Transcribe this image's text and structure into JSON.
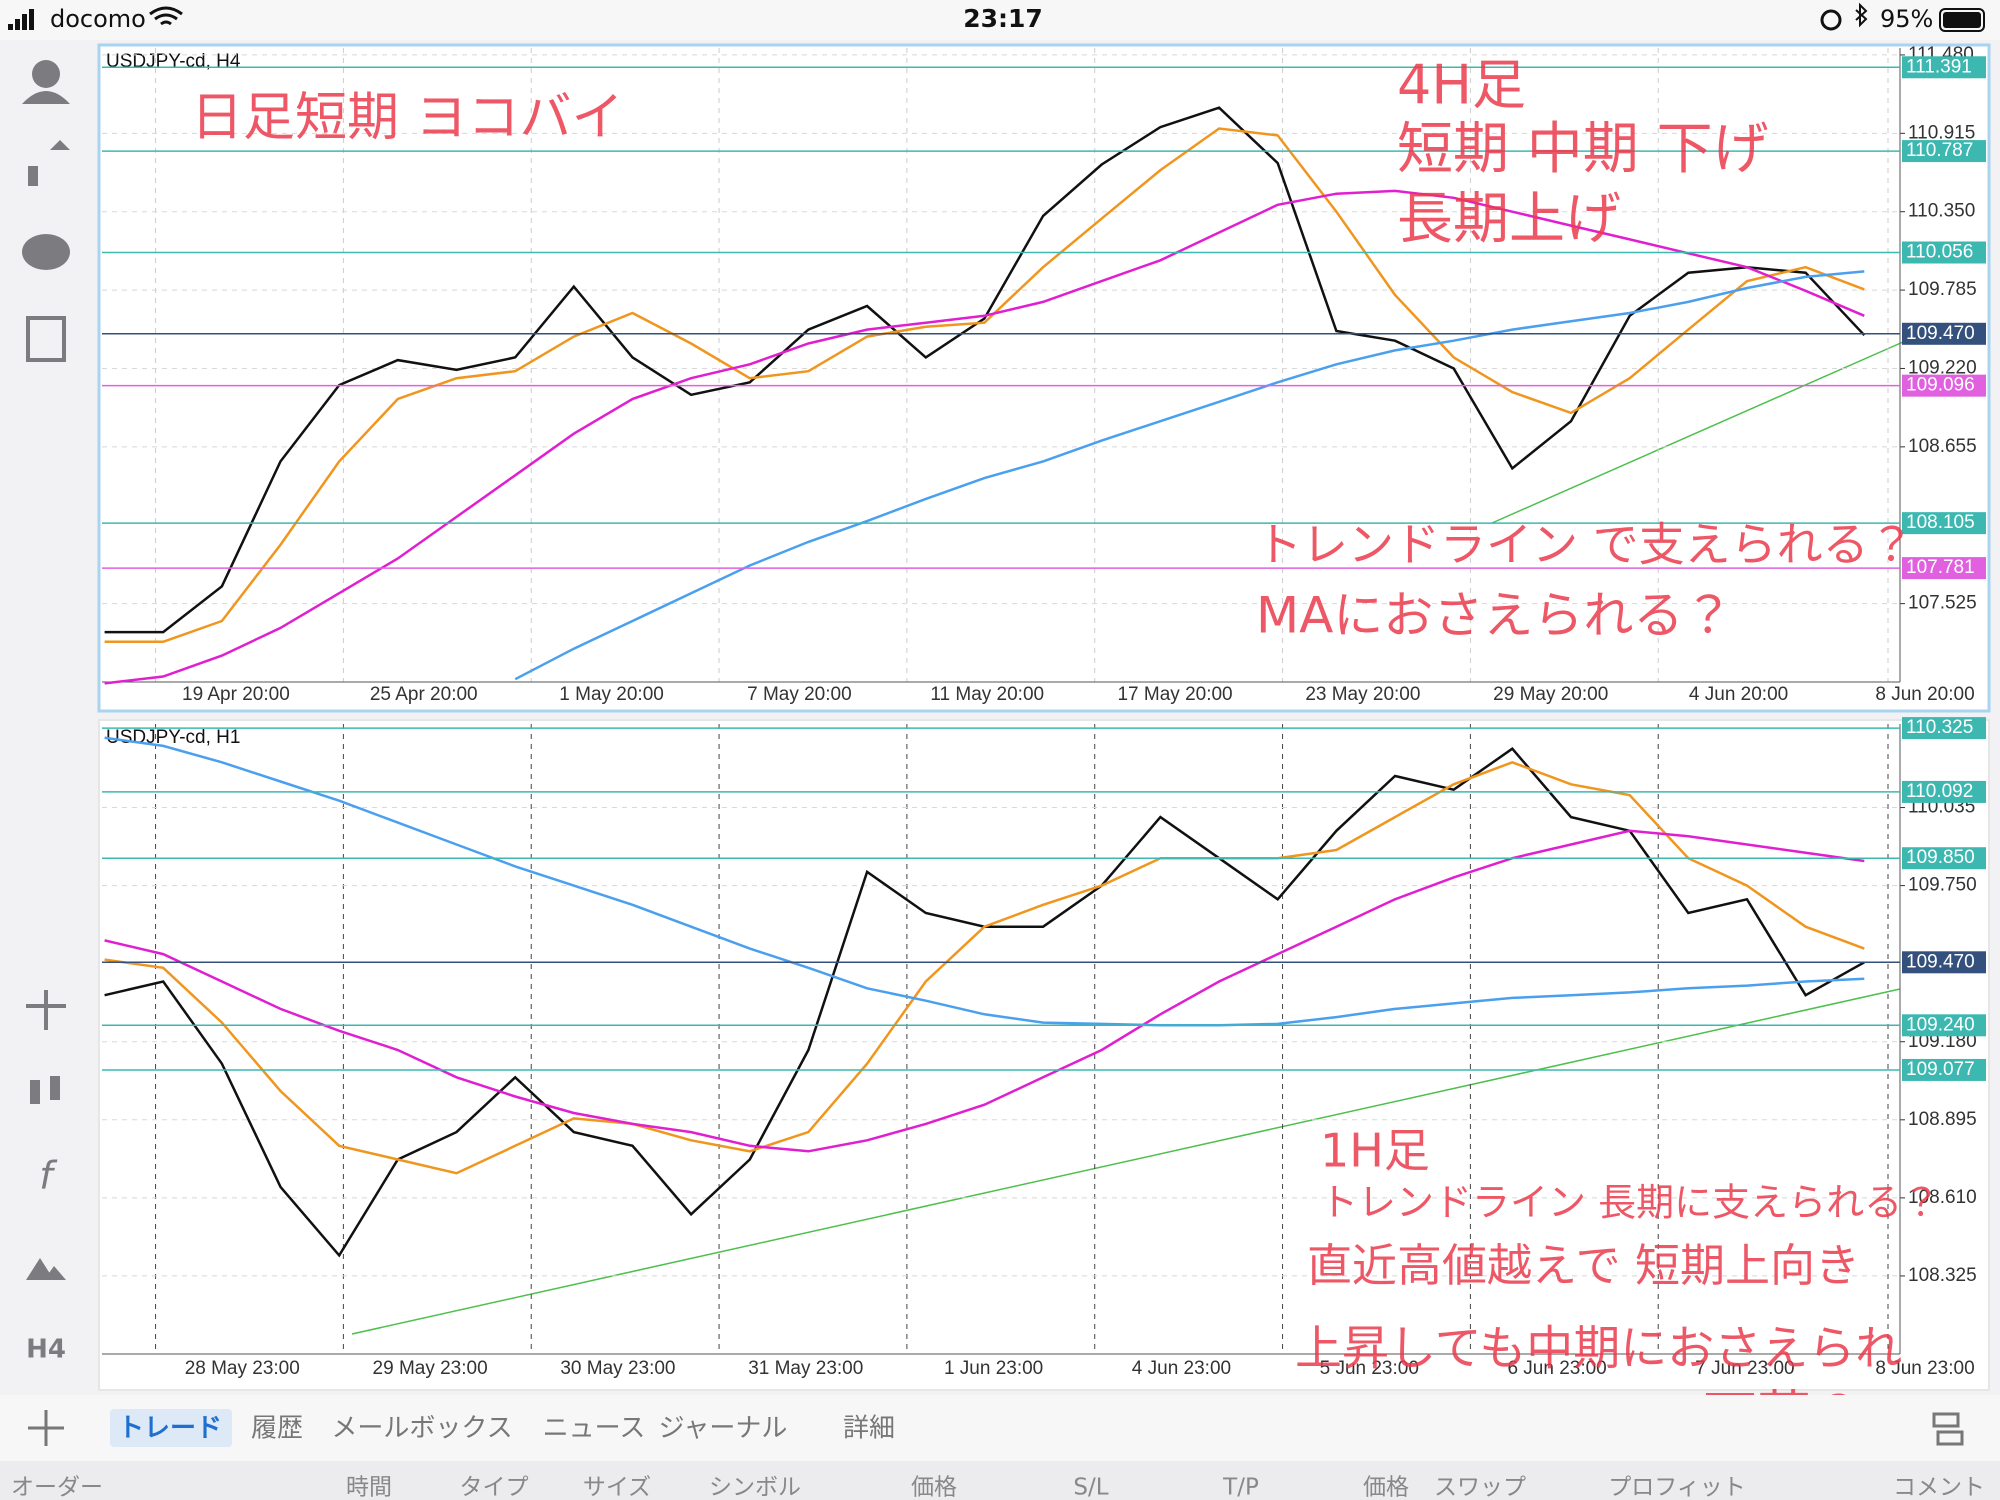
{
  "status_bar": {
    "carrier": "docomo",
    "time": "23:17",
    "battery": "95%"
  },
  "sidebar": {
    "timeframe": "H4"
  },
  "chart_data": [
    {
      "type": "line",
      "title": "USDJPY-cd, H4",
      "ylim": [
        106.96,
        111.53
      ],
      "yticks": [
        {
          "value": 111.48,
          "label": "111.480"
        },
        110.915,
        {
          "value": 110.35,
          "label": "110.350"
        },
        109.785,
        {
          "value": 109.22,
          "label": "109.220"
        },
        108.655,
        107.525
      ],
      "xtick_labels": [
        "19 Apr 20:00",
        "25 Apr 20:00",
        "1 May 20:00",
        "7 May 20:00",
        "11 May 20:00",
        "17 May 20:00",
        "23 May 20:00",
        "29 May 20:00",
        "4 Jun 20:00",
        "8 Jun 20:00"
      ],
      "grid": true,
      "levels": [
        {
          "value": 111.391,
          "color": "#3cb8b0"
        },
        {
          "value": 110.787,
          "color": "#3cb8b0"
        },
        {
          "value": 110.056,
          "color": "#3cb8b0"
        },
        {
          "value": 109.47,
          "label": "109.470",
          "color": "#34507c"
        },
        {
          "value": 109.096,
          "color": "#e060e0"
        },
        {
          "value": 108.105,
          "color": "#3cb8b0"
        },
        {
          "value": 107.781,
          "color": "#e060e0"
        }
      ],
      "series": [
        {
          "color": "#111111",
          "values": [
            107.32,
            107.32,
            107.65,
            108.55,
            109.1,
            109.28,
            109.21,
            109.3,
            109.81,
            109.3,
            109.03,
            109.12,
            109.5,
            109.67,
            109.3,
            109.58,
            110.32,
            110.69,
            110.96,
            111.1,
            110.7,
            109.49,
            109.42,
            109.22,
            108.5,
            108.84,
            109.6,
            109.91,
            109.95,
            109.91,
            109.46
          ]
        },
        {
          "color": "#f0961e",
          "values": [
            107.25,
            107.25,
            107.4,
            107.95,
            108.55,
            109.0,
            109.15,
            109.2,
            109.45,
            109.62,
            109.4,
            109.15,
            109.2,
            109.45,
            109.52,
            109.55,
            109.95,
            110.3,
            110.65,
            110.95,
            110.9,
            110.35,
            109.75,
            109.3,
            109.05,
            108.9,
            109.15,
            109.5,
            109.85,
            109.95,
            109.79
          ]
        },
        {
          "color": "#e020d0",
          "values": [
            106.95,
            107.0,
            107.15,
            107.35,
            107.6,
            107.85,
            108.15,
            108.45,
            108.75,
            109.0,
            109.15,
            109.25,
            109.4,
            109.5,
            109.55,
            109.6,
            109.7,
            109.85,
            110.0,
            110.2,
            110.4,
            110.48,
            110.5,
            110.45,
            110.35,
            110.25,
            110.15,
            110.05,
            109.95,
            109.78,
            109.6
          ]
        },
        {
          "color": "#4aa0ee",
          "values": [
            null,
            null,
            null,
            null,
            null,
            null,
            null,
            106.98,
            107.2,
            107.4,
            107.6,
            107.8,
            107.97,
            108.12,
            108.28,
            108.43,
            108.55,
            108.7,
            108.84,
            108.98,
            109.12,
            109.25,
            109.35,
            109.42,
            109.5,
            109.56,
            109.62,
            109.7,
            109.8,
            109.88,
            109.92
          ]
        }
      ],
      "annotations": [
        "日足短期 ヨコバイ",
        "4H足",
        "短期 中期 下げ",
        "長期上げ",
        "トレンドライン で支えられる？",
        "MAにおさえられる？"
      ]
    },
    {
      "type": "line",
      "title": "USDJPY-cd, H1",
      "ylim": [
        108.04,
        110.34
      ],
      "yticks": [
        110.035,
        {
          "value": 109.75,
          "label": "109.750"
        },
        {
          "value": 109.18,
          "label": "109.180"
        },
        108.895,
        {
          "value": 108.61,
          "label": "108.610"
        },
        108.325
      ],
      "xtick_labels": [
        "28 May 23:00",
        "29 May 23:00",
        "30 May 23:00",
        "31 May 23:00",
        "1 Jun 23:00",
        "4 Jun 23:00",
        "5 Jun 23:00",
        "6 Jun 23:00",
        "7 Jun 23:00",
        "8 Jun 23:00"
      ],
      "grid": true,
      "levels": [
        {
          "value": 110.325,
          "color": "#3cb8b0"
        },
        {
          "value": 110.092,
          "color": "#3cb8b0"
        },
        {
          "value": 109.85,
          "label": "109.850",
          "color": "#3cb8b0"
        },
        {
          "value": 109.47,
          "label": "109.470",
          "color": "#34507c"
        },
        {
          "value": 109.24,
          "label": "109.240",
          "color": "#3cb8b0"
        },
        {
          "value": 109.077,
          "color": "#3cb8b0"
        }
      ],
      "series": [
        {
          "color": "#111111",
          "values": [
            109.35,
            109.4,
            109.1,
            108.65,
            108.4,
            108.75,
            108.85,
            109.05,
            108.85,
            108.8,
            108.55,
            108.75,
            109.15,
            109.8,
            109.65,
            109.6,
            109.6,
            109.75,
            110.0,
            109.85,
            109.7,
            109.95,
            110.15,
            110.1,
            110.25,
            110.0,
            109.95,
            109.65,
            109.7,
            109.35,
            109.47
          ]
        },
        {
          "color": "#f0961e",
          "values": [
            109.48,
            109.45,
            109.25,
            109.0,
            108.8,
            108.75,
            108.7,
            108.8,
            108.9,
            108.88,
            108.82,
            108.78,
            108.85,
            109.1,
            109.4,
            109.6,
            109.68,
            109.75,
            109.85,
            109.85,
            109.85,
            109.88,
            110.0,
            110.12,
            110.2,
            110.12,
            110.08,
            109.85,
            109.75,
            109.6,
            109.52
          ]
        },
        {
          "color": "#e020d0",
          "values": [
            109.55,
            109.5,
            109.4,
            109.3,
            109.22,
            109.15,
            109.05,
            108.98,
            108.92,
            108.88,
            108.85,
            108.8,
            108.78,
            108.82,
            108.88,
            108.95,
            109.05,
            109.15,
            109.28,
            109.4,
            109.5,
            109.6,
            109.7,
            109.78,
            109.85,
            109.9,
            109.95,
            109.93,
            109.9,
            109.87,
            109.84
          ]
        },
        {
          "color": "#4aa0ee",
          "values": [
            110.29,
            110.26,
            110.2,
            110.13,
            110.06,
            109.98,
            109.9,
            109.82,
            109.75,
            109.68,
            109.6,
            109.52,
            109.45,
            109.375,
            109.33,
            109.28,
            109.25,
            109.245,
            109.24,
            109.24,
            109.245,
            109.27,
            109.3,
            109.32,
            109.34,
            109.35,
            109.36,
            109.375,
            109.385,
            109.4,
            109.41
          ]
        }
      ],
      "annotations": [
        "1H足",
        "トレンドライン 長期に支えられる？",
        "直近高値越えで 短期上向き",
        "上昇しても中期におさえられ",
        "下落？"
      ]
    }
  ],
  "tabs": [
    "トレード",
    "履歴",
    "メールボックス",
    "ニュース",
    "ジャーナル",
    "詳細"
  ],
  "columns": [
    "オーダー",
    "時間",
    "タイプ",
    "サイズ",
    "シンボル",
    "価格",
    "S/L",
    "T/P",
    "価格",
    "スワップ",
    "プロフィット",
    "コメント"
  ]
}
